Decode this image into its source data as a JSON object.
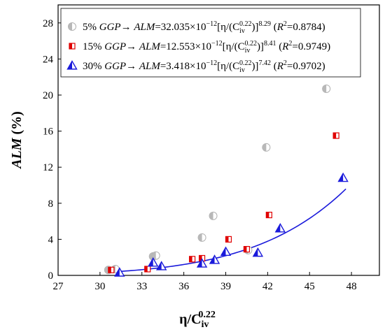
{
  "chart_data": {
    "type": "scatter",
    "xlabel": {
      "base": "η/C",
      "sub": "iv",
      "sup": "0.22"
    },
    "ylabel": {
      "text": "ALM",
      "unit": " (%)"
    },
    "xlim": [
      27,
      50
    ],
    "ylim": [
      0,
      30
    ],
    "xticks": [
      27,
      30,
      33,
      36,
      39,
      42,
      45,
      48
    ],
    "yticks": [
      0,
      4,
      8,
      12,
      16,
      20,
      24,
      28
    ],
    "legend_position": "top-left",
    "series": [
      {
        "name": "5% GGP",
        "color": "#808080",
        "marker": "circle-half",
        "fit_style": "dashdot",
        "fit": {
          "a": 3.2035e-11,
          "b": 8.29,
          "r2": 0.8784
        },
        "x": [
          30.6,
          31.1,
          33.8,
          34.0,
          37.3,
          38.1,
          40.6,
          41.9,
          46.2
        ],
        "y": [
          0.6,
          0.7,
          2.1,
          2.2,
          4.2,
          6.6,
          2.8,
          14.2,
          20.7
        ]
      },
      {
        "name": "15% GGP",
        "color": "#e00000",
        "marker": "square-half",
        "fit_style": "dashed",
        "fit_color": "#8b4513",
        "x": [
          30.8,
          33.4,
          36.6,
          37.3,
          39.2,
          40.5,
          42.1,
          46.9
        ],
        "y": [
          0.6,
          0.7,
          1.8,
          1.9,
          4.0,
          2.9,
          6.7,
          15.5
        ],
        "fit": {
          "a": 1.2553e-11,
          "b": 8.41,
          "r2": 0.9749
        }
      },
      {
        "name": "30% GGP",
        "color": "#1a1adb",
        "marker": "triangle-half",
        "fit_style": "solid",
        "fit": {
          "a": 3.418e-12,
          "b": 7.42,
          "r2": 0.9702
        },
        "x": [
          31.4,
          33.8,
          34.4,
          37.3,
          38.2,
          39.0,
          41.3,
          42.9,
          47.4
        ],
        "y": [
          0.3,
          1.4,
          1.0,
          1.3,
          1.7,
          2.6,
          2.5,
          5.2,
          10.8
        ]
      }
    ],
    "legend_entries": [
      {
        "pct": "5% ",
        "ggp": "GGP",
        "arrow": "→ ",
        "alm": "ALM",
        "coef": "=32.035×10",
        "exp": "−12",
        "bracket": "[η/(C",
        "civ_sub": "iv",
        "civ_sup": "0.22",
        "close": ")]",
        "power": "8.29",
        "r2_open": " (",
        "r2_label": "R",
        "r2_sup": "2",
        "r2_value": "=0.8784)"
      },
      {
        "pct": "15% ",
        "ggp": "GGP",
        "arrow": "→ ",
        "alm": "ALM",
        "coef": "=12.553×10",
        "exp": "−12",
        "bracket": "[η/(C",
        "civ_sub": "iv",
        "civ_sup": "0.22",
        "close": ")]",
        "power": "8.41",
        "r2_open": " (",
        "r2_label": "R",
        "r2_sup": "2",
        "r2_value": "=0.9749)"
      },
      {
        "pct": "30% ",
        "ggp": "GGP",
        "arrow": "→ ",
        "alm": "ALM",
        "coef": "=3.418×10",
        "exp": "−12",
        "bracket": "[η/(C",
        "civ_sub": "iv",
        "civ_sup": "0.22",
        "close": ")]",
        "power": "7.42",
        "r2_open": " (",
        "r2_label": "R",
        "r2_sup": "2",
        "r2_value": "=0.9702)"
      }
    ]
  }
}
